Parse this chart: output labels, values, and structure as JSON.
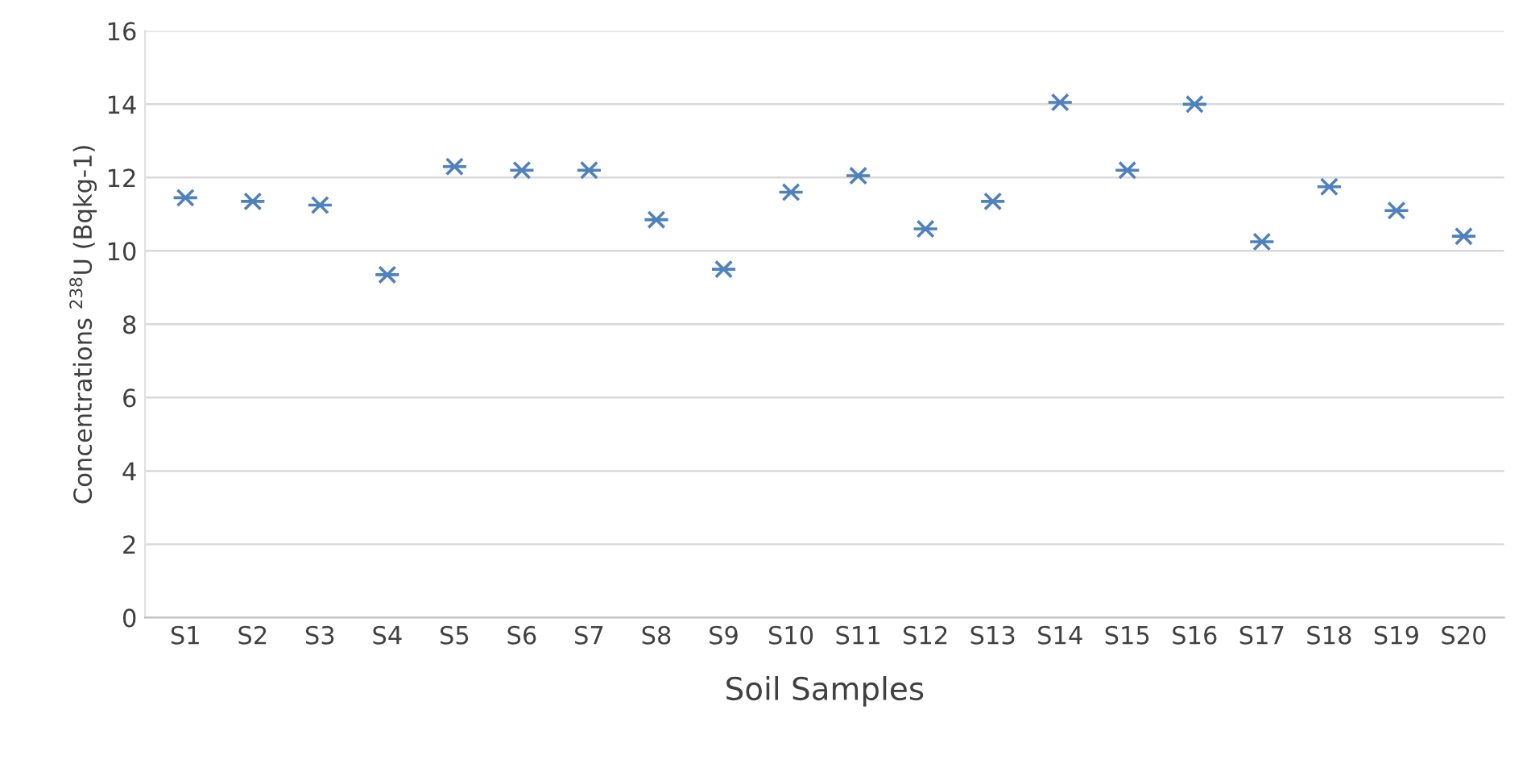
{
  "chart_data": {
    "type": "scatter",
    "xlabel": "Soil Samples",
    "ylabel": "Concentrations $^{238}$U (Bqkg-1)",
    "categories": [
      "S1",
      "S2",
      "S3",
      "S4",
      "S5",
      "S6",
      "S7",
      "S8",
      "S9",
      "S10",
      "S11",
      "S12",
      "S13",
      "S14",
      "S15",
      "S16",
      "S17",
      "S18",
      "S19",
      "S20"
    ],
    "series": [
      {
        "color": "#4f81bd",
        "values": [
          11.45,
          11.35,
          11.25,
          9.35,
          12.3,
          12.2,
          12.2,
          10.85,
          9.5,
          11.6,
          12.05,
          10.6,
          11.35,
          14.05,
          12.2,
          14.0,
          10.25,
          11.75,
          11.1,
          10.4
        ]
      }
    ],
    "ylim": [
      0,
      16
    ],
    "yticks": [
      0,
      2,
      4,
      6,
      8,
      10,
      12,
      14,
      16
    ],
    "grid": "y",
    "marker": "cross"
  }
}
